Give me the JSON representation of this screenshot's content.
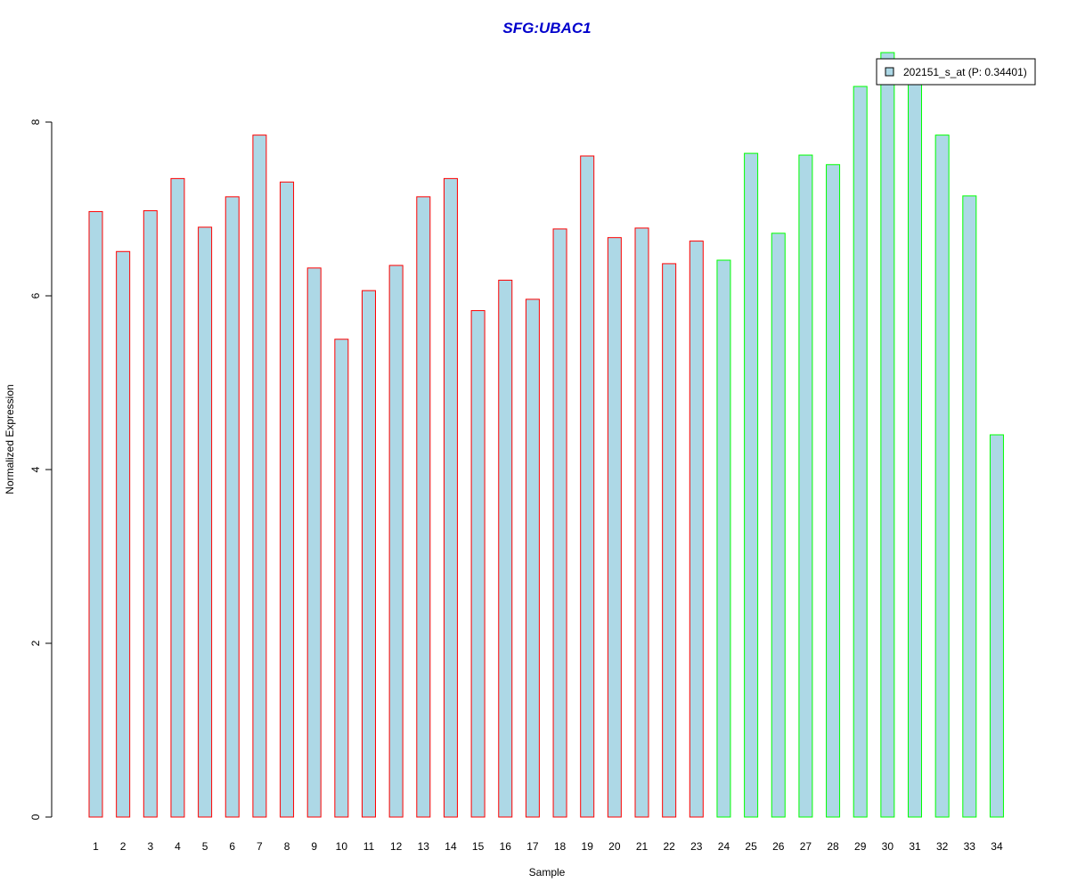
{
  "chart_data": {
    "type": "bar",
    "title": "SFG:UBAC1",
    "xlabel": "Sample",
    "ylabel": "Normalized Expression",
    "ylim": [
      0,
      8.8
    ],
    "yticks": [
      0,
      2,
      4,
      6,
      8
    ],
    "grid": false,
    "legend": {
      "placement": "top-right",
      "label": "202151_s_at (P: 0.34401)"
    },
    "categories": [
      "1",
      "2",
      "3",
      "4",
      "5",
      "6",
      "7",
      "8",
      "9",
      "10",
      "11",
      "12",
      "13",
      "14",
      "15",
      "16",
      "17",
      "18",
      "19",
      "20",
      "21",
      "22",
      "23",
      "24",
      "25",
      "26",
      "27",
      "28",
      "29",
      "30",
      "31",
      "32",
      "33",
      "34"
    ],
    "values": [
      6.97,
      6.51,
      6.98,
      7.35,
      6.79,
      7.14,
      7.85,
      7.31,
      6.32,
      5.5,
      6.06,
      6.35,
      7.14,
      7.35,
      5.83,
      6.18,
      5.96,
      6.77,
      7.61,
      6.67,
      6.78,
      6.37,
      6.63,
      6.41,
      7.64,
      6.72,
      7.62,
      7.51,
      8.41,
      8.8,
      8.56,
      7.85,
      7.15,
      4.4
    ],
    "groups": [
      "red",
      "red",
      "red",
      "red",
      "red",
      "red",
      "red",
      "red",
      "red",
      "red",
      "red",
      "red",
      "red",
      "red",
      "red",
      "red",
      "red",
      "red",
      "red",
      "red",
      "red",
      "red",
      "red",
      "green",
      "green",
      "green",
      "green",
      "green",
      "green",
      "green",
      "green",
      "green",
      "green",
      "green"
    ]
  },
  "colors": {
    "bar_fill": "#add8e6",
    "group_red": "#ff0000",
    "group_green": "#00ff00",
    "title": "#0000cc",
    "axis": "#000000"
  }
}
